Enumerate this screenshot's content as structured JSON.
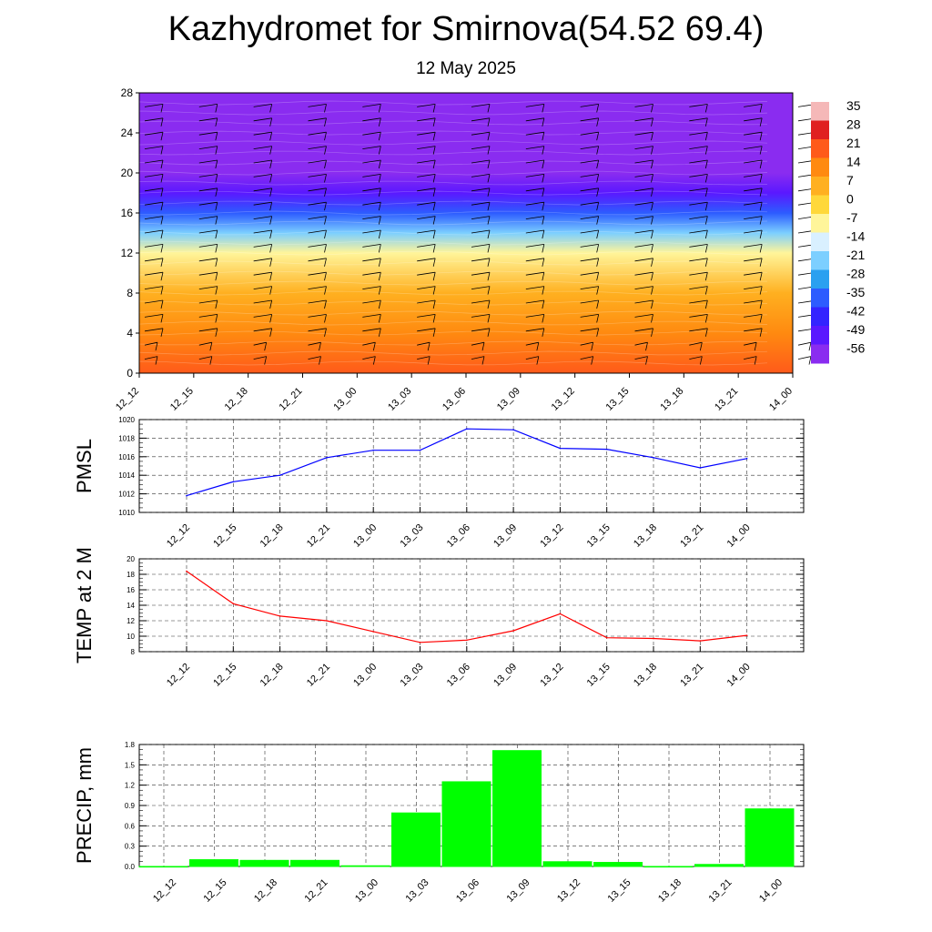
{
  "header": {
    "title": "Kazhydromet for Smirnova(54.52 69.4)",
    "date": "12 May 2025"
  },
  "chart_data": [
    {
      "type": "heatmap",
      "title": "",
      "x_ticks": [
        "12_12",
        "12_15",
        "12_18",
        "12_21",
        "13_00",
        "13_03",
        "13_06",
        "13_09",
        "13_12",
        "13_15",
        "13_18",
        "13_21",
        "14_00"
      ],
      "y_ticks": [
        0,
        4,
        8,
        12,
        16,
        20,
        24,
        28
      ],
      "ylim": [
        0,
        28
      ],
      "colorbar": {
        "labels": [
          "35",
          "28",
          "21",
          "14",
          "7",
          "0",
          "-7",
          "-14",
          "-21",
          "-28",
          "-35",
          "-42",
          "-49",
          "-56"
        ],
        "colors": [
          "#f5b8b8",
          "#e02020",
          "#ff5a1a",
          "#ff8a10",
          "#ffb020",
          "#ffd83a",
          "#fff59a",
          "#d9f0ff",
          "#7ccfff",
          "#2aa0f0",
          "#2d5cff",
          "#3324ff",
          "#5a18ff",
          "#8a2cf0"
        ]
      },
      "temperature_bands": [
        {
          "level": 0,
          "value": 18
        },
        {
          "level": 4,
          "value": 11
        },
        {
          "level": 8,
          "value": 6
        },
        {
          "level": 12,
          "value": -5
        },
        {
          "level": 14,
          "value": -18
        },
        {
          "level": 16,
          "value": -33
        },
        {
          "level": 18,
          "value": -48
        },
        {
          "level": 20,
          "value": -55
        },
        {
          "level": 24,
          "value": -60
        },
        {
          "level": 28,
          "value": -55
        }
      ],
      "wind_barbs": true
    },
    {
      "type": "line",
      "ylabel": "PMSL",
      "x": [
        "12_12",
        "12_15",
        "12_18",
        "12_21",
        "13_00",
        "13_03",
        "13_06",
        "13_09",
        "13_12",
        "13_15",
        "13_18",
        "13_21",
        "14_00"
      ],
      "y_ticks": [
        1010,
        1012,
        1014,
        1016,
        1018,
        1020
      ],
      "ylim": [
        1010,
        1020
      ],
      "color": "#0000ff",
      "values": [
        1011.8,
        1013.3,
        1014.0,
        1015.9,
        1016.7,
        1016.7,
        1019.0,
        1018.9,
        1016.9,
        1016.8,
        1015.9,
        1014.8,
        1015.8
      ]
    },
    {
      "type": "line",
      "ylabel": "TEMP at 2 M",
      "x": [
        "12_12",
        "12_15",
        "12_18",
        "12_21",
        "13_00",
        "13_03",
        "13_06",
        "13_09",
        "13_12",
        "13_15",
        "13_18",
        "13_21",
        "14_00"
      ],
      "y_ticks": [
        8,
        10,
        12,
        14,
        16,
        18,
        20
      ],
      "ylim": [
        8,
        20
      ],
      "color": "#ff0000",
      "values": [
        18.4,
        14.2,
        12.6,
        12.0,
        10.6,
        9.2,
        9.5,
        10.7,
        12.9,
        9.8,
        9.7,
        9.4,
        10.1
      ]
    },
    {
      "type": "bar",
      "ylabel": "PRECIP, mm",
      "categories": [
        "12_12",
        "12_15",
        "12_18",
        "12_21",
        "13_00",
        "13_03",
        "13_06",
        "13_09",
        "13_12",
        "13_15",
        "13_18",
        "13_21",
        "14_00"
      ],
      "y_ticks": [
        "0.0",
        "0.3",
        "0.6",
        "0.9",
        "1.2",
        "1.5",
        "1.8"
      ],
      "ylim": [
        0,
        1.8
      ],
      "color": "#00ff00",
      "values": [
        0,
        0.1,
        0.09,
        0.09,
        0.01,
        0.79,
        1.25,
        1.71,
        0.07,
        0.06,
        0,
        0.03,
        0.85
      ]
    }
  ]
}
